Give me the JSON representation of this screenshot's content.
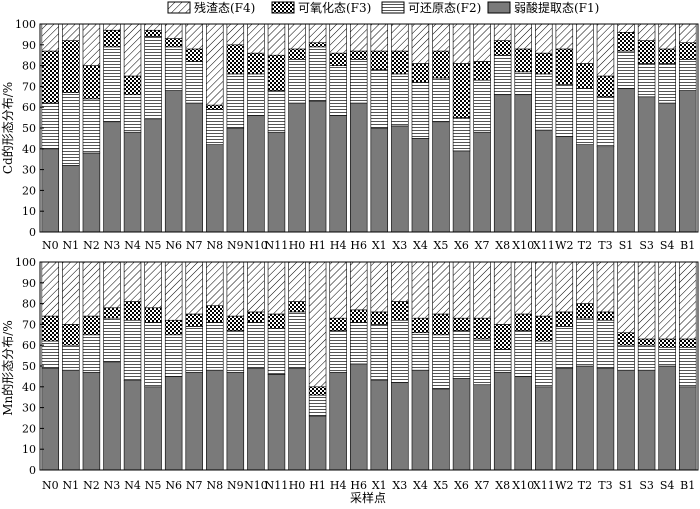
{
  "legend": [
    {
      "key": "F4",
      "label": "残渣态(F4)",
      "pattern": "diag"
    },
    {
      "key": "F3",
      "label": "可氧化态(F3)",
      "pattern": "dots"
    },
    {
      "key": "F2",
      "label": "可还原态(F2)",
      "pattern": "hlines"
    },
    {
      "key": "F1",
      "label": "弱酸提取态(F1)",
      "pattern": "solid"
    }
  ],
  "colors": {
    "bar_fill": "#8c8c8c",
    "solid": "#7a7a7a",
    "axis": "#000000"
  },
  "chart_data": [
    {
      "type": "bar",
      "stacked": true,
      "ylabel": "Cd的形态分布/%",
      "xlabel": "",
      "ylim": [
        0,
        100
      ],
      "yticks": [
        0,
        10,
        20,
        30,
        40,
        50,
        60,
        70,
        80,
        90,
        100
      ],
      "categories": [
        "N0",
        "N1",
        "N2",
        "N3",
        "N4",
        "N5",
        "N6",
        "N7",
        "N8",
        "N9",
        "N10",
        "N11",
        "H0",
        "H1",
        "H4",
        "H6",
        "X1",
        "X3",
        "X4",
        "X5",
        "X6",
        "X7",
        "X8",
        "X10",
        "X11",
        "W2",
        "T2",
        "T3",
        "S1",
        "S3",
        "S4",
        "B1"
      ],
      "series": [
        {
          "name": "弱酸提取态(F1)",
          "values": [
            40,
            32,
            38,
            53,
            48,
            54,
            68,
            62,
            42,
            50,
            56,
            48,
            62,
            63,
            56,
            62,
            50,
            51,
            45,
            53,
            39,
            48,
            66,
            66,
            49,
            46,
            42,
            41,
            69,
            65,
            62,
            68
          ]
        },
        {
          "name": "可还原态(F2)",
          "values": [
            22,
            35,
            26,
            36,
            18,
            40,
            21,
            20,
            17,
            26,
            20,
            20,
            21,
            26,
            24,
            21,
            28,
            25,
            27,
            21,
            16,
            25,
            19,
            11,
            27,
            25,
            27,
            24,
            18,
            16,
            19,
            15
          ]
        },
        {
          "name": "可氧化态(F3)",
          "values": [
            25,
            25,
            16,
            8,
            9,
            3,
            4,
            6,
            2,
            14,
            10,
            17,
            5,
            2,
            6,
            4,
            9,
            11,
            9,
            13,
            26,
            9,
            7,
            11,
            10,
            17,
            12,
            10,
            9,
            11,
            7,
            8
          ]
        },
        {
          "name": "残渣态(F4)",
          "values": [
            13,
            8,
            20,
            3,
            25,
            3,
            7,
            12,
            39,
            10,
            14,
            15,
            12,
            9,
            14,
            13,
            13,
            13,
            19,
            13,
            19,
            18,
            8,
            12,
            14,
            12,
            19,
            25,
            4,
            8,
            12,
            9
          ]
        }
      ]
    },
    {
      "type": "bar",
      "stacked": true,
      "ylabel": "Mn的形态分布/%",
      "xlabel": "采样点",
      "ylim": [
        0,
        100
      ],
      "yticks": [
        0,
        10,
        20,
        30,
        40,
        50,
        60,
        70,
        80,
        90,
        100
      ],
      "categories": [
        "N0",
        "N1",
        "N2",
        "N3",
        "N4",
        "N5",
        "N6",
        "N7",
        "N8",
        "N9",
        "N10",
        "N11",
        "H0",
        "H1",
        "H4",
        "H6",
        "X1",
        "X3",
        "X4",
        "X5",
        "X6",
        "X7",
        "X8",
        "X10",
        "X11",
        "W2",
        "T2",
        "T3",
        "S1",
        "S3",
        "S4",
        "B1"
      ],
      "series": [
        {
          "name": "弱酸提取态(F1)",
          "values": [
            49,
            48,
            47,
            52,
            43,
            40,
            45,
            47,
            48,
            47,
            49,
            46,
            49,
            26,
            47,
            51,
            43,
            42,
            48,
            39,
            44,
            41,
            47,
            45,
            40,
            49,
            50,
            49,
            48,
            48,
            50,
            40
          ]
        },
        {
          "name": "可还原态(F2)",
          "values": [
            13,
            12,
            18,
            21,
            29,
            31,
            20,
            22,
            23,
            20,
            22,
            22,
            27,
            10,
            20,
            20,
            27,
            30,
            18,
            26,
            23,
            22,
            11,
            22,
            22,
            20,
            23,
            23,
            12,
            12,
            9,
            19
          ]
        },
        {
          "name": "可氧化态(F3)",
          "values": [
            12,
            10,
            9,
            5,
            9,
            7,
            7,
            6,
            8,
            7,
            5,
            7,
            5,
            4,
            6,
            6,
            6,
            9,
            7,
            10,
            6,
            10,
            12,
            8,
            12,
            7,
            7,
            4,
            6,
            3,
            4,
            4
          ]
        },
        {
          "name": "残渣态(F4)",
          "values": [
            26,
            30,
            26,
            22,
            19,
            22,
            28,
            25,
            21,
            26,
            24,
            25,
            19,
            60,
            27,
            23,
            24,
            19,
            27,
            25,
            27,
            27,
            30,
            25,
            26,
            24,
            20,
            24,
            34,
            37,
            37,
            37
          ]
        }
      ]
    }
  ]
}
